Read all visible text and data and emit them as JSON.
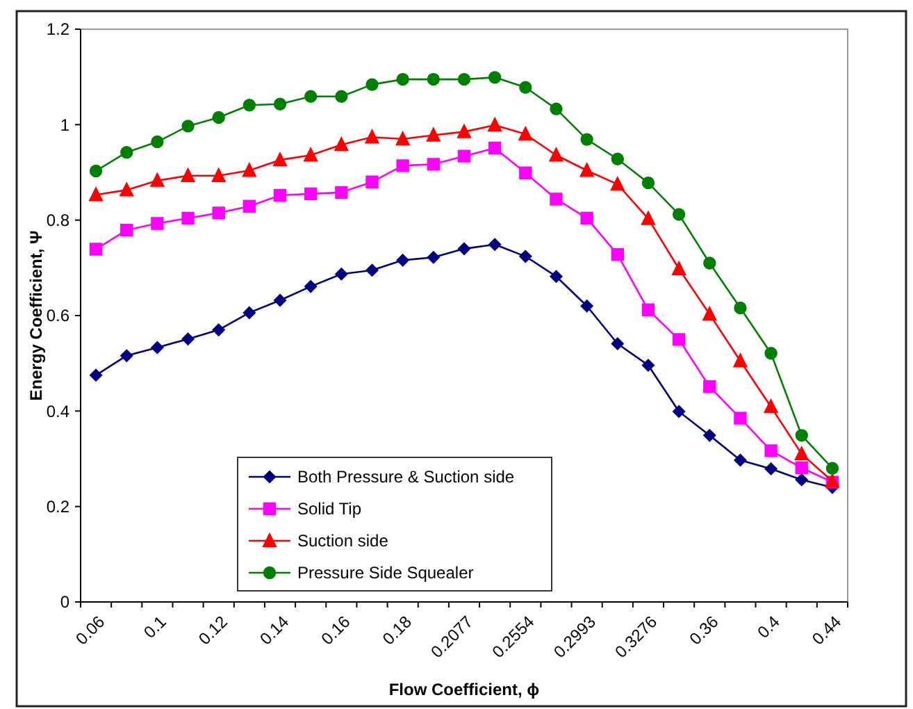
{
  "chart_data": {
    "type": "line",
    "xlabel": "Flow Coefficient, ϕ",
    "ylabel": "Energy Coefficient, Ψ",
    "categories": [
      "0.06",
      null,
      "0.1",
      null,
      "0.12",
      null,
      "0.14",
      null,
      "0.16",
      null,
      "0.18",
      null,
      "0.2077",
      null,
      "0.2554",
      null,
      "0.2993",
      null,
      "0.3276",
      null,
      "0.36",
      null,
      "0.4",
      null,
      "0.44"
    ],
    "ylim": [
      0,
      1.2
    ],
    "yticks": [
      0,
      0.2,
      0.4,
      0.6,
      0.8,
      1,
      1.2
    ],
    "grid": false,
    "legend": "bottom",
    "line_style": "solid",
    "series": [
      {
        "name": "Both Pressure & Suction side",
        "color": "#000080",
        "marker": "diamond",
        "values": [
          0.475,
          0.516,
          0.533,
          0.551,
          0.57,
          0.606,
          0.632,
          0.661,
          0.687,
          0.695,
          0.716,
          0.722,
          0.74,
          0.749,
          0.724,
          0.682,
          0.62,
          0.541,
          0.496,
          0.399,
          0.349,
          0.297,
          0.279,
          0.256,
          0.24
        ]
      },
      {
        "name": "Solid Tip",
        "color": "#ff00ff",
        "marker": "square",
        "values": [
          0.739,
          0.779,
          0.793,
          0.804,
          0.815,
          0.829,
          0.852,
          0.855,
          0.858,
          0.88,
          0.914,
          0.917,
          0.934,
          0.951,
          0.899,
          0.844,
          0.804,
          0.728,
          0.612,
          0.55,
          0.451,
          0.385,
          0.317,
          0.281,
          0.251
        ]
      },
      {
        "name": "Suction side",
        "color": "#ff0000",
        "marker": "triangle",
        "values": [
          0.853,
          0.863,
          0.883,
          0.893,
          0.893,
          0.904,
          0.926,
          0.936,
          0.958,
          0.974,
          0.97,
          0.978,
          0.985,
          0.999,
          0.98,
          0.936,
          0.904,
          0.875,
          0.803,
          0.698,
          0.603,
          0.505,
          0.409,
          0.31,
          0.253
        ]
      },
      {
        "name": "Pressure Side Squealer",
        "color": "#008000",
        "marker": "circle",
        "values": [
          0.903,
          0.942,
          0.964,
          0.997,
          1.015,
          1.041,
          1.043,
          1.059,
          1.059,
          1.084,
          1.095,
          1.095,
          1.095,
          1.099,
          1.078,
          1.033,
          0.969,
          0.928,
          0.878,
          0.812,
          0.71,
          0.616,
          0.521,
          0.349,
          0.28
        ]
      }
    ]
  }
}
